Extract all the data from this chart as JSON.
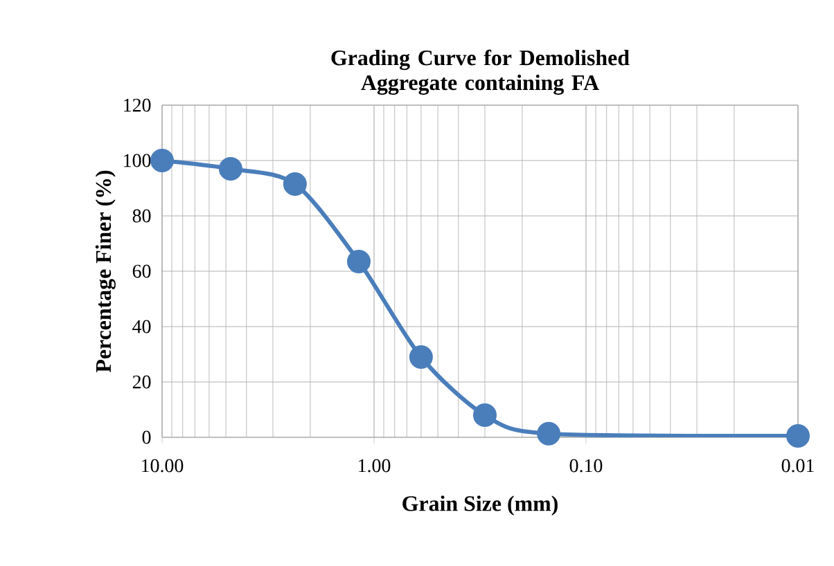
{
  "chart_data": {
    "type": "line",
    "title": "Grading Curve for Demolished Aggregate containing FA",
    "xlabel": "Grain Size (mm)",
    "ylabel": "Percentage Finer (%)",
    "log": "x",
    "xlim": [
      10,
      0.01
    ],
    "xticks": [
      {
        "value": 10,
        "label": "10.00"
      },
      {
        "value": 1,
        "label": "1.00"
      },
      {
        "value": 0.1,
        "label": "0.10"
      },
      {
        "value": 0.01,
        "label": "0.01"
      }
    ],
    "ylim": [
      0,
      120
    ],
    "yticks": [
      0,
      20,
      40,
      60,
      80,
      100,
      120
    ],
    "grid": true,
    "marker": "circle",
    "line_style": "solid",
    "series": [
      {
        "color": "#4a7ebb",
        "x": [
          10,
          4.75,
          2.36,
          1.18,
          0.6,
          0.3,
          0.15,
          0.01
        ],
        "values": [
          100,
          97,
          91.5,
          63.5,
          29,
          8,
          1.3,
          0.5
        ]
      }
    ]
  }
}
